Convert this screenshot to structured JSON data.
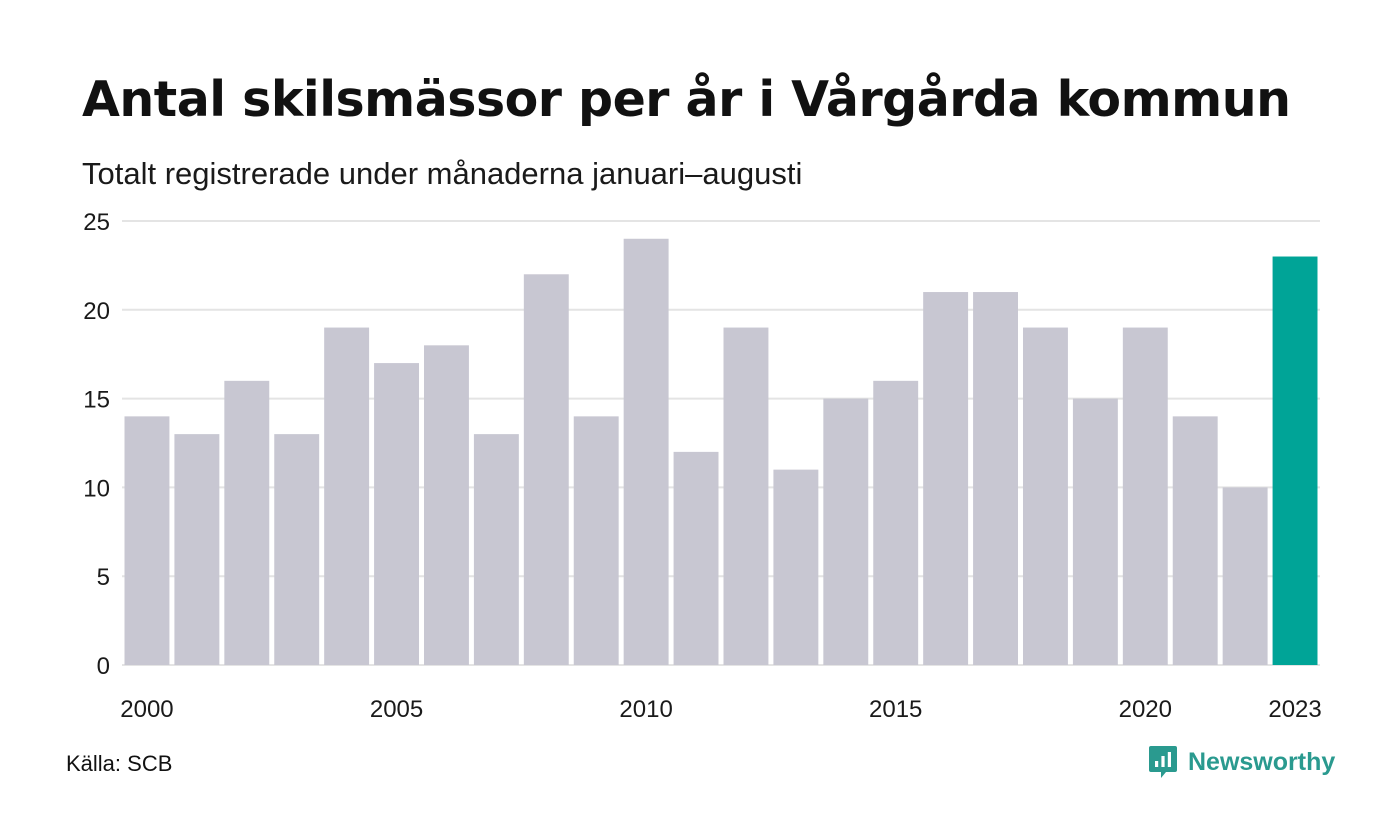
{
  "header": {
    "title": "Antal skilsmässor per år i Vårgårda kommun",
    "subtitle": "Totalt registrerade under månaderna januari–augusti"
  },
  "footer": {
    "source": "Källa: SCB",
    "brand": "Newsworthy",
    "brand_icon": "newsworthy-logo-icon"
  },
  "colors": {
    "bar": "#c8c7d2",
    "highlight": "#00a497",
    "grid": "#e4e4e4",
    "brand": "#2a9a8f"
  },
  "chart_data": {
    "type": "bar",
    "title": "Antal skilsmässor per år i Vårgårda kommun",
    "subtitle": "Totalt registrerade under månaderna januari–augusti",
    "categories": [
      "2000",
      "2001",
      "2002",
      "2003",
      "2004",
      "2005",
      "2006",
      "2007",
      "2008",
      "2009",
      "2010",
      "2011",
      "2012",
      "2013",
      "2014",
      "2015",
      "2016",
      "2017",
      "2018",
      "2019",
      "2020",
      "2021",
      "2022",
      "2023"
    ],
    "values": [
      14,
      13,
      16,
      13,
      19,
      17,
      18,
      13,
      22,
      14,
      24,
      12,
      19,
      11,
      15,
      16,
      21,
      21,
      19,
      15,
      19,
      14,
      10,
      23
    ],
    "highlight": "2023",
    "x_tick_labels": [
      "2000",
      "2005",
      "2010",
      "2015",
      "2020",
      "2023"
    ],
    "y_ticks": [
      0,
      5,
      10,
      15,
      20,
      25
    ],
    "ylim": [
      0,
      25
    ],
    "xlabel": "",
    "ylabel": "",
    "grid": true,
    "legend": "none"
  }
}
